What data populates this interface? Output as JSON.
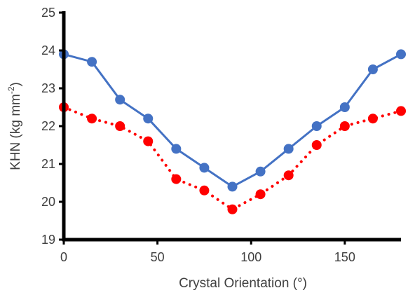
{
  "chart_data": {
    "type": "line",
    "title": "",
    "xlabel": "Crystal Orientation (°)",
    "ylabel": {
      "main": "KHN (kg mm",
      "sup": "-2",
      "close": ")"
    },
    "xlim": [
      0,
      180
    ],
    "ylim": [
      19,
      25
    ],
    "xticks": [
      0,
      50,
      100,
      150
    ],
    "yticks": [
      19,
      20,
      21,
      22,
      23,
      24,
      25
    ],
    "grid": false,
    "legend": "none",
    "x": [
      0,
      15,
      30,
      45,
      60,
      75,
      90,
      105,
      120,
      135,
      150,
      165,
      180
    ],
    "series": [
      {
        "color": "#4472C4",
        "line_style": "solid",
        "marker": "circle",
        "values": [
          23.9,
          23.7,
          22.7,
          22.2,
          21.4,
          20.9,
          20.4,
          20.8,
          21.4,
          22.0,
          22.5,
          23.5,
          23.9
        ]
      },
      {
        "color": "#FF0000",
        "line_style": "dotted",
        "marker": "circle",
        "values": [
          22.5,
          22.2,
          22.0,
          21.6,
          20.6,
          20.3,
          19.8,
          20.2,
          20.7,
          21.5,
          22.0,
          22.2,
          22.4
        ]
      }
    ]
  }
}
